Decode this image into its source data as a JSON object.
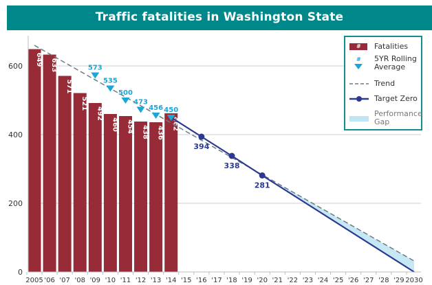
{
  "chart_data": {
    "type": "bar",
    "title": "Traffic fatalities in Washington State",
    "xlabel": "",
    "ylabel": "",
    "ylim": [
      0,
      680
    ],
    "yticks": [
      0,
      200,
      400,
      600
    ],
    "ytick_labels": [
      "0",
      "200",
      "400",
      "600"
    ],
    "grid": true,
    "legend_position": "top-right",
    "x_tick_labels": [
      "2005",
      "'06",
      "'07",
      "'08",
      "'09",
      "'10",
      "'11",
      "'12",
      "'13",
      "'14",
      "'15",
      "'16",
      "'17",
      "'18",
      "'19",
      "'20",
      "'21",
      "'22",
      "'23",
      "'24",
      "'25",
      "'26",
      "'27",
      "'28",
      "'29",
      "2030"
    ],
    "x_years": [
      2005,
      2006,
      2007,
      2008,
      2009,
      2010,
      2011,
      2012,
      2013,
      2014,
      2015,
      2016,
      2017,
      2018,
      2019,
      2020,
      2021,
      2022,
      2023,
      2024,
      2025,
      2026,
      2027,
      2028,
      2029,
      2030
    ],
    "series": [
      {
        "name": "Fatalities",
        "type": "bar",
        "x": [
          2005,
          2006,
          2007,
          2008,
          2009,
          2010,
          2011,
          2012,
          2013,
          2014
        ],
        "values": [
          649,
          633,
          571,
          521,
          492,
          460,
          454,
          438,
          436,
          462
        ],
        "labels": [
          "649",
          "633",
          "571",
          "521",
          "492",
          "460",
          "454",
          "438",
          "436",
          "462"
        ]
      },
      {
        "name": "5YR Rolling Average",
        "type": "marker",
        "x": [
          2009,
          2010,
          2011,
          2012,
          2013,
          2014
        ],
        "values": [
          573,
          535,
          500,
          473,
          456,
          450
        ],
        "labels": [
          "573",
          "535",
          "500",
          "473",
          "456",
          "450"
        ]
      },
      {
        "name": "Trend",
        "type": "line",
        "x": [
          2005,
          2030
        ],
        "values": [
          660,
          32
        ]
      },
      {
        "name": "Target Zero",
        "type": "line",
        "x": [
          2014,
          2016,
          2018,
          2020,
          2030
        ],
        "values": [
          450,
          394,
          338,
          281,
          0
        ],
        "marked_x": [
          2016,
          2018,
          2020
        ],
        "labels": [
          "394",
          "338",
          "281"
        ]
      },
      {
        "name": "Performance Gap",
        "type": "area"
      }
    ]
  },
  "legend": {
    "fatalities": {
      "symbol": "#",
      "label": "Fatalities"
    },
    "rolling": {
      "symbol": "#",
      "label_line1": "5YR Rolling",
      "label_line2": "Average"
    },
    "trend": {
      "label": "Trend"
    },
    "target": {
      "label": "Target Zero"
    },
    "gap": {
      "label_line1": "Performance",
      "label_line2": "Gap"
    }
  },
  "colors": {
    "header": "#00878a",
    "bar": "#972b38",
    "rolling": "#1aa6d6",
    "trend": "#6b7b84",
    "target": "#2b3990",
    "gap": "#bfe6f3",
    "legend_border": "#0f8f92"
  }
}
